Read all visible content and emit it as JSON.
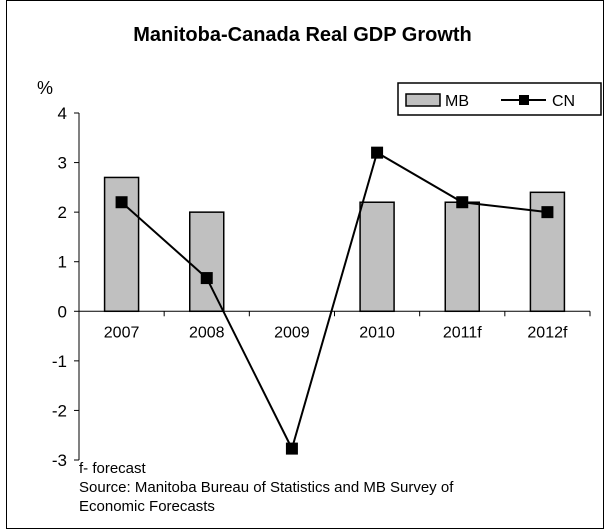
{
  "chart_data": {
    "type": "bar",
    "title": "Manitoba-Canada Real GDP Growth",
    "ylabel": "%",
    "xlabel": "",
    "categories": [
      "2007",
      "2008",
      "2009",
      "2010",
      "2011f",
      "2012f"
    ],
    "ylim": [
      -3,
      4
    ],
    "yticks": [
      4,
      3,
      2,
      1,
      0,
      -1,
      -2,
      -3
    ],
    "grid": false,
    "legend_position": "top-right",
    "series": [
      {
        "name": "MB",
        "kind": "bar",
        "color": "#c0c0c0",
        "values": [
          2.7,
          2.0,
          0.0,
          2.2,
          2.2,
          2.4
        ]
      },
      {
        "name": "CN",
        "kind": "line",
        "color": "#000000",
        "marker": "square",
        "values": [
          2.2,
          0.67,
          -2.77,
          3.2,
          2.2,
          2.0
        ]
      }
    ]
  },
  "footnote": {
    "line1": "f- forecast",
    "line2": "Source: Manitoba Bureau of Statistics and MB Survey of",
    "line3": "Economic Forecasts"
  }
}
